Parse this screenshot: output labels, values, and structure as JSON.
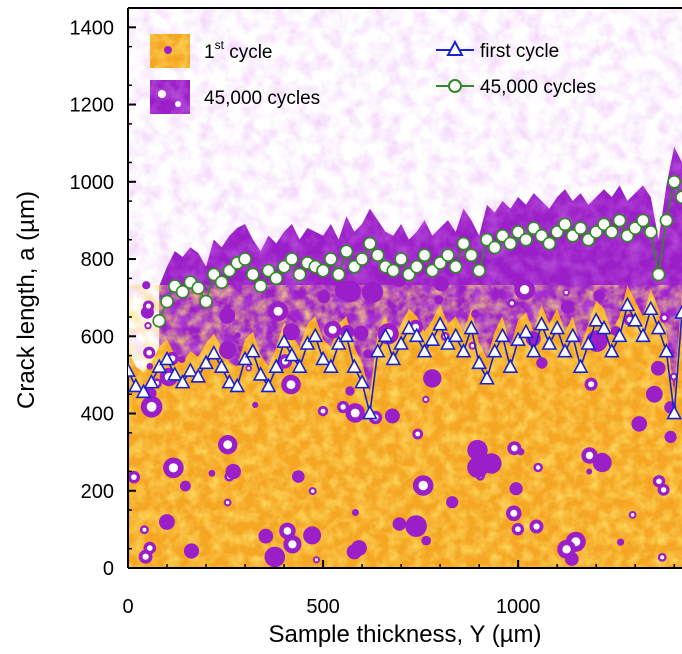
{
  "chart_data": {
    "type": "line",
    "title": "",
    "xlabel": "Sample thickness, Y (µm)",
    "ylabel": "Crack length, a (µm)",
    "xlim": [
      0,
      1420
    ],
    "ylim": [
      0,
      1450
    ],
    "x_ticks": [
      0,
      500,
      1000
    ],
    "x_tick_labels": [
      "0",
      "500",
      "1000"
    ],
    "y_ticks": [
      0,
      200,
      400,
      600,
      800,
      1000,
      1200,
      1400
    ],
    "y_tick_labels": [
      "0",
      "200",
      "400",
      "600",
      "800",
      "1000",
      "1200",
      "1400"
    ],
    "grid": false,
    "legend_position": "top",
    "background_legend": [
      {
        "label_main": "1",
        "label_sup": "st",
        "label_rest": " cycle",
        "color": "#f5a623"
      },
      {
        "label_main": "45,000 cycles",
        "color": "#9b1fc8"
      }
    ],
    "series": [
      {
        "name": "first cycle",
        "color": "#1a22cc",
        "marker": "triangle",
        "x": [
          0,
          20,
          40,
          60,
          80,
          100,
          120,
          140,
          160,
          180,
          200,
          220,
          240,
          260,
          280,
          300,
          320,
          340,
          360,
          380,
          400,
          420,
          440,
          460,
          480,
          500,
          520,
          540,
          560,
          580,
          600,
          620,
          640,
          660,
          680,
          700,
          720,
          740,
          760,
          780,
          800,
          820,
          840,
          860,
          880,
          900,
          920,
          940,
          960,
          980,
          1000,
          1020,
          1040,
          1060,
          1080,
          1100,
          1120,
          1140,
          1160,
          1180,
          1200,
          1220,
          1240,
          1260,
          1280,
          1300,
          1320,
          1340,
          1360,
          1380,
          1400,
          1420
        ],
        "y": [
          510,
          470,
          455,
          480,
          520,
          540,
          500,
          480,
          510,
          495,
          530,
          555,
          520,
          480,
          470,
          540,
          560,
          500,
          470,
          520,
          585,
          550,
          520,
          580,
          600,
          540,
          520,
          580,
          600,
          520,
          480,
          400,
          560,
          600,
          540,
          580,
          620,
          600,
          560,
          590,
          630,
          580,
          600,
          560,
          620,
          530,
          490,
          560,
          600,
          520,
          590,
          610,
          560,
          630,
          580,
          620,
          560,
          600,
          520,
          580,
          640,
          620,
          560,
          600,
          680,
          640,
          600,
          670,
          620,
          560,
          400,
          660
        ]
      },
      {
        "name": "45,000 cycles",
        "color": "#2e8b22",
        "marker": "circle",
        "x": [
          80,
          100,
          120,
          140,
          160,
          180,
          200,
          220,
          240,
          260,
          280,
          300,
          320,
          340,
          360,
          380,
          400,
          420,
          440,
          460,
          480,
          500,
          520,
          540,
          560,
          580,
          600,
          620,
          640,
          660,
          680,
          700,
          720,
          740,
          760,
          780,
          800,
          820,
          840,
          860,
          880,
          900,
          920,
          940,
          960,
          980,
          1000,
          1020,
          1040,
          1060,
          1080,
          1100,
          1120,
          1140,
          1160,
          1180,
          1200,
          1220,
          1240,
          1260,
          1280,
          1300,
          1320,
          1340,
          1360,
          1380,
          1400,
          1420
        ],
        "y": [
          640,
          690,
          730,
          715,
          740,
          725,
          690,
          760,
          740,
          770,
          790,
          800,
          760,
          730,
          770,
          750,
          780,
          800,
          760,
          790,
          780,
          770,
          800,
          760,
          820,
          780,
          800,
          840,
          810,
          780,
          770,
          800,
          760,
          780,
          810,
          770,
          790,
          810,
          780,
          840,
          810,
          770,
          850,
          830,
          860,
          840,
          870,
          850,
          880,
          860,
          840,
          870,
          890,
          860,
          880,
          850,
          870,
          890,
          870,
          900,
          860,
          880,
          900,
          870,
          760,
          900,
          1000,
          960
        ]
      }
    ]
  }
}
